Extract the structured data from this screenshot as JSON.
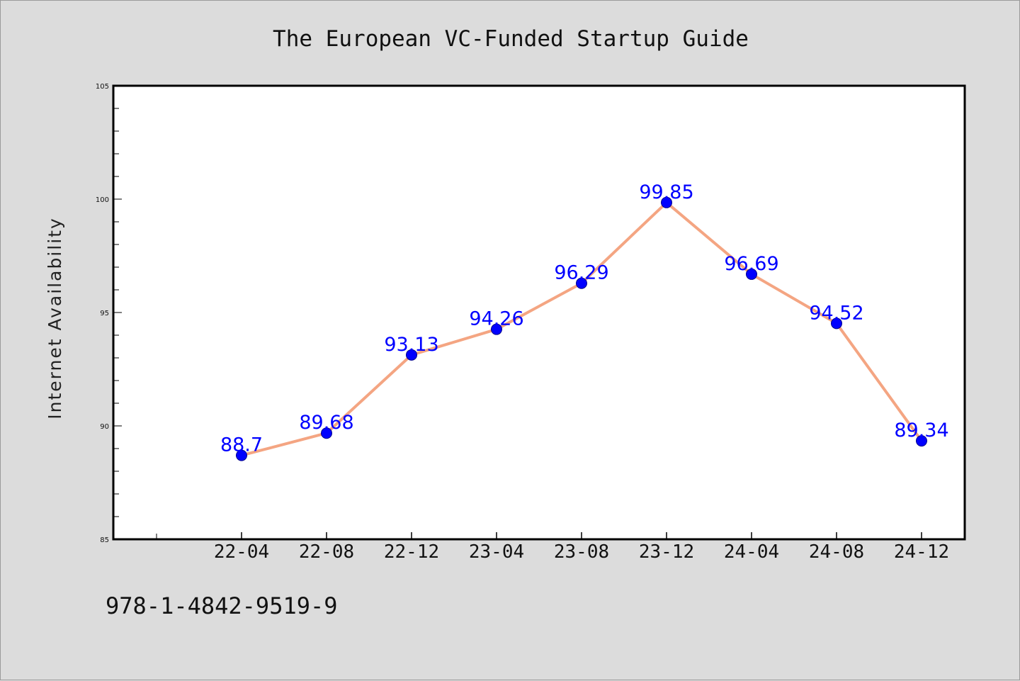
{
  "chart_data": {
    "type": "line",
    "title": "The European VC-Funded Startup Guide",
    "xlabel": "",
    "ylabel": "Internet Availability",
    "categories": [
      "22-04",
      "22-08",
      "22-12",
      "23-04",
      "23-08",
      "23-12",
      "24-04",
      "24-08",
      "24-12"
    ],
    "series": [
      {
        "values": [
          88.7,
          89.68,
          93.13,
          94.26,
          96.29,
          99.85,
          96.69,
          94.52,
          89.34
        ],
        "data_labels": [
          "88.7",
          "89.68",
          "93.13",
          "94.26",
          "96.29",
          "99.85",
          "96.69",
          "94.52",
          "89.34"
        ],
        "line_color": "#f4a582",
        "marker_color": "#0000ff"
      }
    ],
    "ylim": [
      85,
      105
    ],
    "yticks": [
      85,
      90,
      95,
      100,
      105
    ],
    "yticks_text": [
      "85",
      "90",
      "95",
      "100",
      "105"
    ],
    "grid": false,
    "legend": "none"
  },
  "footer": {
    "isbn": "978-1-4842-9519-9"
  },
  "colors": {
    "background": "#dcdcdc",
    "plot_background": "#ffffff",
    "axis": "#000000"
  }
}
